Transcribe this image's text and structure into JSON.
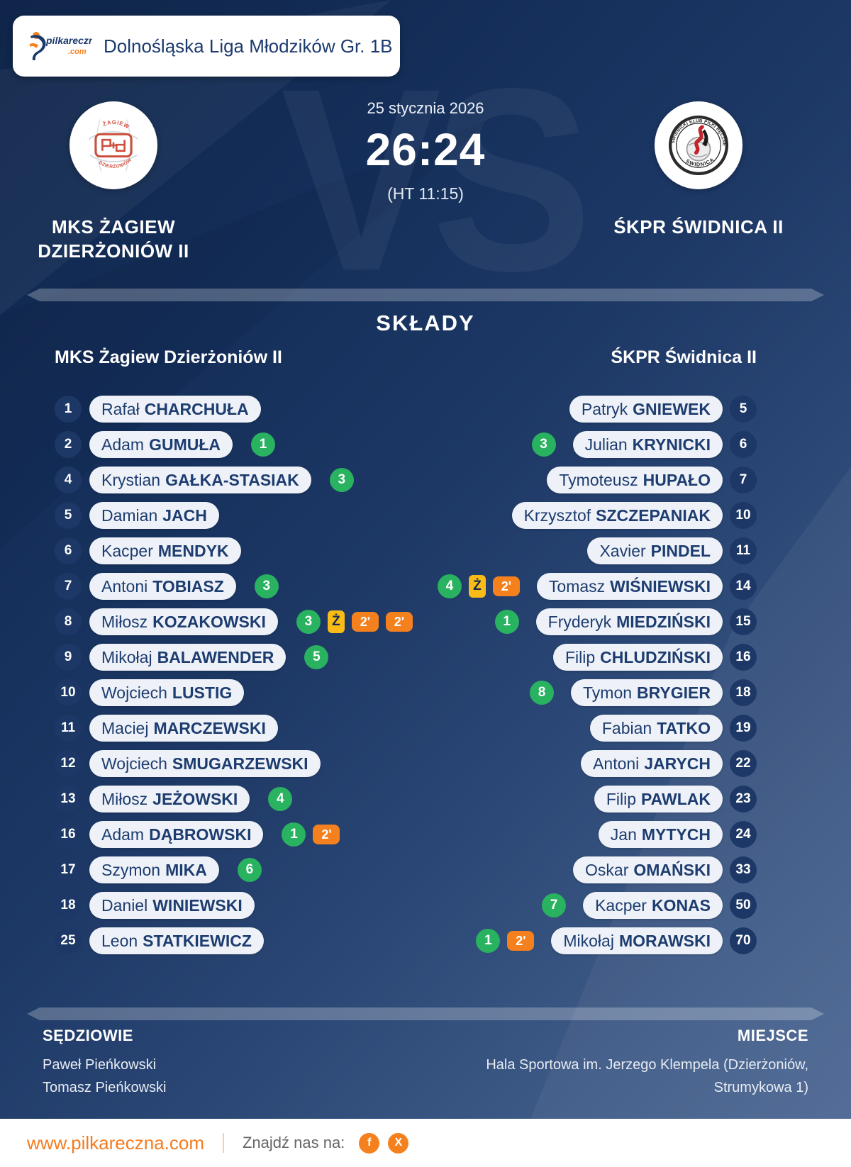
{
  "header": {
    "league": "Dolnośląska Liga Młodzików Gr. 1B",
    "logo_text": "pilkareczna",
    "logo_tld": ".com"
  },
  "match": {
    "date": "25 stycznia 2026",
    "score": "26:24",
    "halftime": "(HT 11:15)",
    "vs_watermark": "VS",
    "home": {
      "name_lines": [
        "MKS ŻAGIEW",
        "DZIERŻONIÓW II"
      ],
      "crest_text_top": "ŻAGIEW",
      "crest_text_bottom": "DZIERŻONIÓW"
    },
    "away": {
      "name_lines": [
        "ŚKPR ŚWIDNICA II"
      ],
      "crest_ring_text": "ŚWIDNICKI KLUB PIŁKI RĘCZNEJ",
      "crest_text_bottom": "ŚWIDNICA"
    }
  },
  "lineups": {
    "title": "SKŁADY",
    "home_header": "MKS Żagiew Dzierżoniów II",
    "away_header": "ŚKPR Świdnica II",
    "home": [
      {
        "number": "1",
        "first": "Rafał",
        "last": "CHARCHUŁA",
        "badges": []
      },
      {
        "number": "2",
        "first": "Adam",
        "last": "GUMUŁA",
        "badges": [
          {
            "type": "goals",
            "value": "1"
          }
        ]
      },
      {
        "number": "4",
        "first": "Krystian",
        "last": "GAŁKA-STASIAK",
        "badges": [
          {
            "type": "goals",
            "value": "3"
          }
        ]
      },
      {
        "number": "5",
        "first": "Damian",
        "last": "JACH",
        "badges": []
      },
      {
        "number": "6",
        "first": "Kacper",
        "last": "MENDYK",
        "badges": []
      },
      {
        "number": "7",
        "first": "Antoni",
        "last": "TOBIASZ",
        "badges": [
          {
            "type": "goals",
            "value": "3"
          }
        ]
      },
      {
        "number": "8",
        "first": "Miłosz",
        "last": "KOZAKOWSKI",
        "badges": [
          {
            "type": "goals",
            "value": "3"
          },
          {
            "type": "yellow",
            "value": "Ż"
          },
          {
            "type": "pen",
            "value": "2'"
          },
          {
            "type": "pen",
            "value": "2'"
          }
        ]
      },
      {
        "number": "9",
        "first": "Mikołaj",
        "last": "BALAWENDER",
        "badges": [
          {
            "type": "goals",
            "value": "5"
          }
        ]
      },
      {
        "number": "10",
        "first": "Wojciech",
        "last": "LUSTIG",
        "badges": []
      },
      {
        "number": "11",
        "first": "Maciej",
        "last": "MARCZEWSKI",
        "badges": []
      },
      {
        "number": "12",
        "first": "Wojciech",
        "last": "SMUGARZEWSKI",
        "badges": []
      },
      {
        "number": "13",
        "first": "Miłosz",
        "last": "JEŻOWSKI",
        "badges": [
          {
            "type": "goals",
            "value": "4"
          }
        ]
      },
      {
        "number": "16",
        "first": "Adam",
        "last": "DĄBROWSKI",
        "badges": [
          {
            "type": "goals",
            "value": "1"
          },
          {
            "type": "pen",
            "value": "2'"
          }
        ]
      },
      {
        "number": "17",
        "first": "Szymon",
        "last": "MIKA",
        "badges": [
          {
            "type": "goals",
            "value": "6"
          }
        ]
      },
      {
        "number": "18",
        "first": "Daniel",
        "last": "WINIEWSKI",
        "badges": []
      },
      {
        "number": "25",
        "first": "Leon",
        "last": "STATKIEWICZ",
        "badges": []
      }
    ],
    "away": [
      {
        "number": "5",
        "first": "Patryk",
        "last": "GNIEWEK",
        "badges": []
      },
      {
        "number": "6",
        "first": "Julian",
        "last": "KRYNICKI",
        "badges": [
          {
            "type": "goals",
            "value": "3"
          }
        ]
      },
      {
        "number": "7",
        "first": "Tymoteusz",
        "last": "HUPAŁO",
        "badges": []
      },
      {
        "number": "10",
        "first": "Krzysztof",
        "last": "SZCZEPANIAK",
        "badges": []
      },
      {
        "number": "11",
        "first": "Xavier",
        "last": "PINDEL",
        "badges": []
      },
      {
        "number": "14",
        "first": "Tomasz",
        "last": "WIŚNIEWSKI",
        "badges": [
          {
            "type": "goals",
            "value": "4"
          },
          {
            "type": "yellow",
            "value": "Ż"
          },
          {
            "type": "pen",
            "value": "2'"
          }
        ]
      },
      {
        "number": "15",
        "first": "Fryderyk",
        "last": "MIEDZIŃSKI",
        "badges": [
          {
            "type": "goals",
            "value": "1"
          }
        ]
      },
      {
        "number": "16",
        "first": "Filip",
        "last": "CHLUDZIŃSKI",
        "badges": []
      },
      {
        "number": "18",
        "first": "Tymon",
        "last": "BRYGIER",
        "badges": [
          {
            "type": "goals",
            "value": "8"
          }
        ]
      },
      {
        "number": "19",
        "first": "Fabian",
        "last": "TATKO",
        "badges": []
      },
      {
        "number": "22",
        "first": "Antoni",
        "last": "JARYCH",
        "badges": []
      },
      {
        "number": "23",
        "first": "Filip",
        "last": "PAWLAK",
        "badges": []
      },
      {
        "number": "24",
        "first": "Jan",
        "last": "MYTYCH",
        "badges": []
      },
      {
        "number": "33",
        "first": "Oskar",
        "last": "OMAŃSKI",
        "badges": []
      },
      {
        "number": "50",
        "first": "Kacper",
        "last": "KONAS",
        "badges": [
          {
            "type": "goals",
            "value": "7"
          }
        ]
      },
      {
        "number": "70",
        "first": "Mikołaj",
        "last": "MORAWSKI",
        "badges": [
          {
            "type": "goals",
            "value": "1"
          },
          {
            "type": "pen",
            "value": "2'"
          }
        ]
      }
    ]
  },
  "officials": {
    "referees_title": "SĘDZIOWIE",
    "referees": [
      "Paweł Pieńkowski",
      "Tomasz Pieńkowski"
    ],
    "venue_title": "MIEJSCE",
    "venue_lines": [
      "Hala Sportowa im. Jerzego Klempela (Dzierżoniów,",
      "Strumykowa 1)"
    ]
  },
  "footer": {
    "url": "www.pilkareczna.com",
    "find_us": "Znajdź nas na:",
    "social": [
      {
        "name": "facebook",
        "glyph": "f"
      },
      {
        "name": "x",
        "glyph": "X"
      }
    ]
  },
  "colors": {
    "accent_orange": "#f5801e",
    "goals_green": "#29b25f",
    "yellow_card": "#f8bb17",
    "navy_text": "#1d3c6f",
    "bg_navy": "#142e59"
  }
}
